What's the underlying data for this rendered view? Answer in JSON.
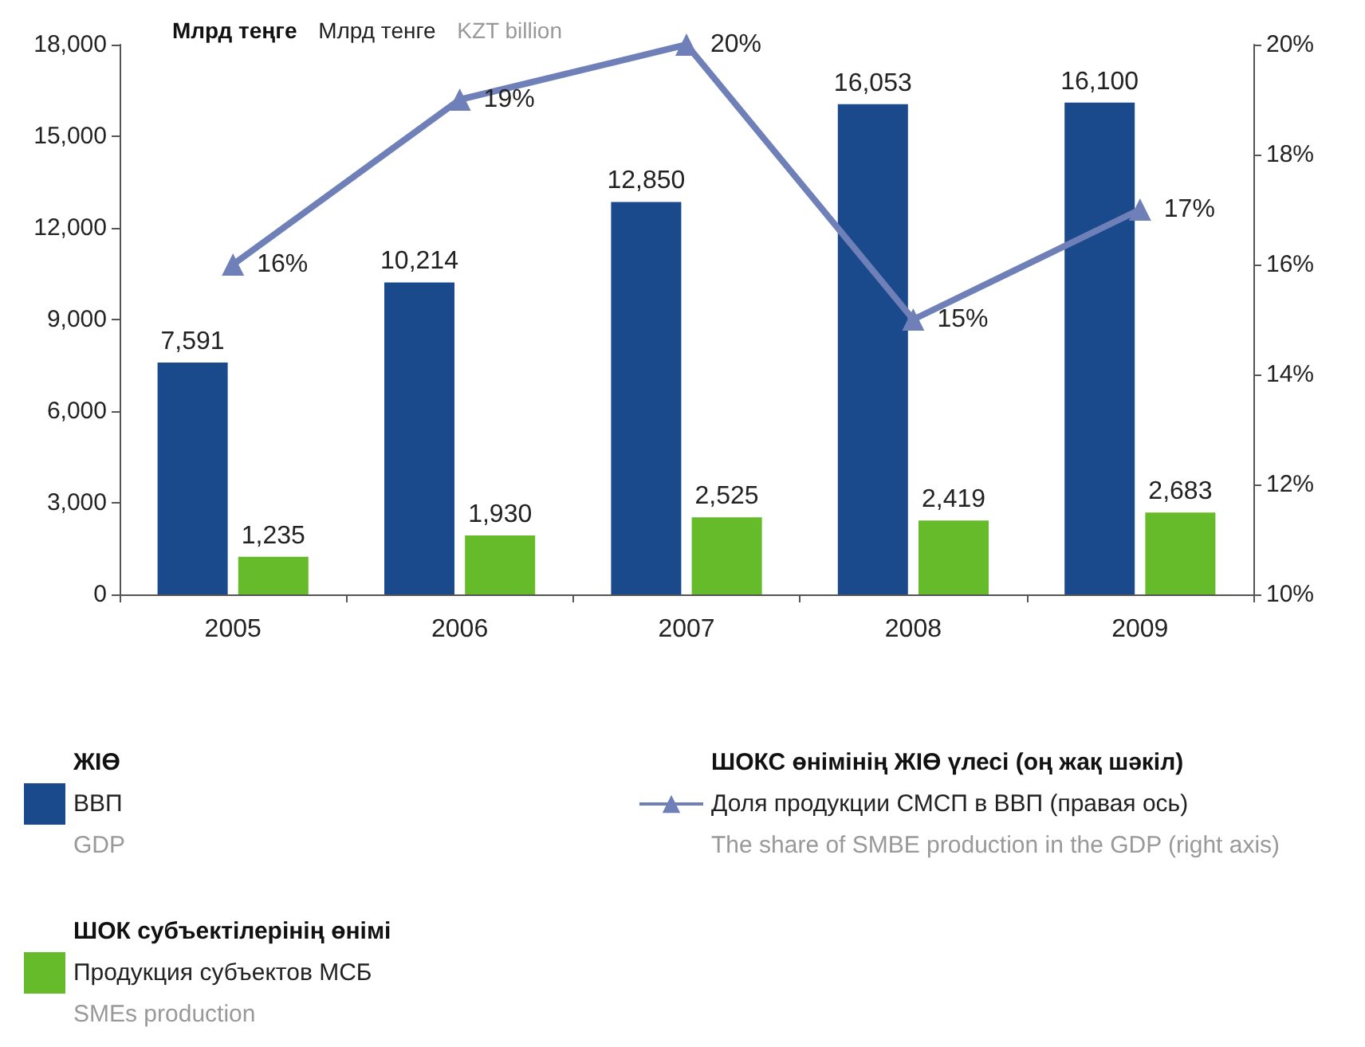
{
  "chart_data": {
    "type": "bar",
    "ylabel": "Млрд теңге\nМлрд тенге\nKZT billion",
    "categories": [
      "2005",
      "2006",
      "2007",
      "2008",
      "2009"
    ],
    "series": [
      {
        "name": "ЖІӨ\nВВП\nGDP",
        "color": "#1a4a8c",
        "values": [
          7591,
          10214,
          12850,
          16053,
          16100
        ],
        "value_labels": [
          "7,591",
          "10,214",
          "12,850",
          "16,053",
          "16,100"
        ]
      },
      {
        "name": "ШОК субъектілерінің өнімі\nПродукция субъектов МСБ\nSMEs production",
        "color": "#66bb2a",
        "values": [
          1235,
          1930,
          2525,
          2419,
          2683
        ],
        "value_labels": [
          "1,235",
          "1,930",
          "2,525",
          "2,419",
          "2,683"
        ]
      },
      {
        "name": "ШОКС өнімінің ЖІӨ үлесі (оң жақ шәкіл)\nДоля продукции СМСП в ВВП (правая ось)\nThe share of SMBE production in the GDP (right axis)",
        "type": "line",
        "axis": "y2",
        "color": "#6f80b8",
        "marker": "triangle",
        "values": [
          16,
          19,
          20,
          15,
          17
        ],
        "value_labels": [
          "16%",
          "19%",
          "20%",
          "15%",
          "17%"
        ]
      }
    ],
    "ylim": [
      0,
      18000
    ],
    "yticks": [
      {
        "value": 0,
        "label": "0"
      },
      {
        "value": 3000,
        "label": "3,000"
      },
      {
        "value": 6000,
        "label": "6,000"
      },
      {
        "value": 9000,
        "label": "9,000"
      },
      {
        "value": 12000,
        "label": "12,000"
      },
      {
        "value": 15000,
        "label": "15,000"
      },
      {
        "value": 18000,
        "label": "18,000"
      }
    ],
    "y2lim": [
      10,
      20
    ],
    "y2ticks": [
      {
        "value": 10,
        "label": "10%"
      },
      {
        "value": 12,
        "label": "12%"
      },
      {
        "value": 14,
        "label": "14%"
      },
      {
        "value": 16,
        "label": "16%"
      },
      {
        "value": 18,
        "label": "18%"
      },
      {
        "value": 20,
        "label": "20%"
      }
    ],
    "grid": false,
    "legend": "bottom"
  }
}
